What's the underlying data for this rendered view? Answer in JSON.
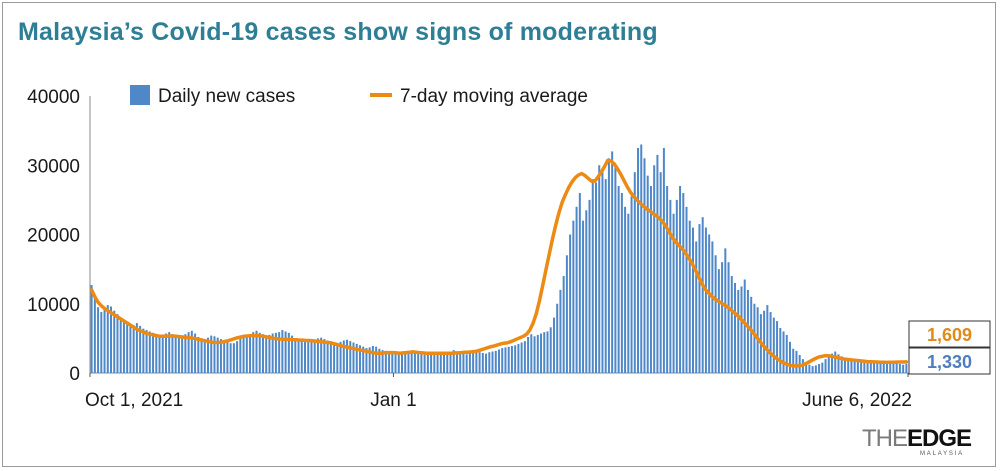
{
  "title": "Malaysia’s Covid-19 cases show signs of moderating",
  "logo": {
    "part1": "THE",
    "part2": "EDGE",
    "sub": "MALAYSIA"
  },
  "colors": {
    "bars": "#4e88c8",
    "line": "#ec8a13",
    "title": "#2e7f96",
    "callout_line": "#e08a1a",
    "callout_bar": "#4e7ec0"
  },
  "chart_data": {
    "type": "bar",
    "title": "Malaysia’s Covid-19 cases show signs of moderating",
    "xlabel": "",
    "ylabel": "",
    "ylim": [
      0,
      40000
    ],
    "yticks": [
      0,
      10000,
      20000,
      30000,
      40000
    ],
    "ytick_labels": [
      "0",
      "10000",
      "20000",
      "30000",
      "40000"
    ],
    "x_start": "2021-10-01",
    "x_end": "2022-06-06",
    "xtick_labels": [
      {
        "date": "2021-10-01",
        "label": "Oct 1, 2021"
      },
      {
        "date": "2022-01-01",
        "label": "Jan 1"
      },
      {
        "date": "2022-06-06",
        "label": "June 6, 2022"
      }
    ],
    "legend": {
      "placement": "top",
      "entries": [
        "Daily new cases",
        "7-day moving average"
      ]
    },
    "series": [
      {
        "name": "Daily new cases",
        "kind": "bar",
        "values": [
          12700,
          11000,
          9500,
          8800,
          9300,
          9800,
          9600,
          9000,
          8500,
          8000,
          7500,
          7400,
          7000,
          6900,
          7200,
          6800,
          6400,
          6200,
          6000,
          5800,
          5600,
          5400,
          5500,
          5700,
          5900,
          5600,
          5300,
          5100,
          5000,
          5600,
          5900,
          6100,
          5700,
          5200,
          5000,
          4800,
          5100,
          5400,
          5300,
          5100,
          4900,
          4600,
          4400,
          4300,
          4300,
          4600,
          5000,
          5200,
          5400,
          5600,
          5900,
          6100,
          5800,
          5600,
          5400,
          5500,
          5700,
          5800,
          5900,
          6200,
          6000,
          5800,
          5400,
          4900,
          4700,
          4600,
          4600,
          4500,
          4500,
          4700,
          5000,
          5100,
          4900,
          4700,
          4600,
          4300,
          4200,
          4500,
          4700,
          4800,
          4600,
          4400,
          4200,
          4000,
          3800,
          3600,
          3700,
          3900,
          3800,
          3500,
          3300,
          3200,
          3000,
          2900,
          2900,
          2800,
          2900,
          3000,
          3200,
          3000,
          2900,
          2800,
          2700,
          2900,
          3100,
          3000,
          2800,
          2700,
          2600,
          2700,
          2900,
          3100,
          3300,
          3100,
          2900,
          3000,
          2700,
          3100,
          3300,
          3200,
          3000,
          2900,
          2800,
          3000,
          3100,
          3200,
          3400,
          3600,
          3700,
          3800,
          3900,
          4000,
          4200,
          4400,
          4600,
          5200,
          5600,
          5300,
          5500,
          5700,
          5900,
          6000,
          6600,
          8000,
          10000,
          12000,
          14000,
          17000,
          20000,
          22000,
          24000,
          26000,
          22000,
          23500,
          25000,
          28000,
          27500,
          30000,
          29500,
          28000,
          31000,
          32000,
          30000,
          27000,
          26000,
          24000,
          23000,
          25500,
          29000,
          32500,
          33000,
          31000,
          28500,
          27000,
          30000,
          31500,
          29000,
          32500,
          27000,
          25000,
          23000,
          25000,
          27000,
          26000,
          24000,
          22000,
          21000,
          19000,
          21500,
          22500,
          21000,
          20000,
          19000,
          17000,
          15000,
          16000,
          18000,
          16000,
          14000,
          13000,
          12000,
          12500,
          13500,
          12000,
          11000,
          10000,
          9500,
          8500,
          9000,
          9800,
          8800,
          8000,
          7500,
          6500,
          6000,
          5500,
          4500,
          3500,
          3200,
          2600,
          2000,
          1500,
          1200,
          1000,
          1100,
          1300,
          1500,
          2000,
          2500,
          2800,
          3100,
          2700,
          2400,
          2200,
          2000,
          1900,
          1800,
          1700,
          1800,
          1900,
          1800,
          1700,
          1600,
          1500,
          1700,
          1600,
          1400,
          1300,
          1500,
          1400,
          1300,
          1200,
          1330
        ]
      },
      {
        "name": "7-day moving average",
        "kind": "line",
        "values": [
          12000,
          11000,
          10200,
          9700,
          9300,
          9000,
          8700,
          8400,
          8100,
          7800,
          7500,
          7200,
          6900,
          6600,
          6300,
          6100,
          5900,
          5700,
          5600,
          5500,
          5400,
          5300,
          5300,
          5300,
          5350,
          5350,
          5300,
          5250,
          5200,
          5150,
          5100,
          5050,
          4950,
          4850,
          4750,
          4650,
          4550,
          4450,
          4400,
          4400,
          4450,
          4550,
          4650,
          4800,
          4950,
          5100,
          5200,
          5300,
          5350,
          5400,
          5400,
          5400,
          5350,
          5300,
          5200,
          5100,
          5000,
          4950,
          4900,
          4850,
          4850,
          4850,
          4800,
          4800,
          4750,
          4750,
          4700,
          4700,
          4650,
          4600,
          4550,
          4500,
          4450,
          4400,
          4300,
          4200,
          4050,
          3900,
          3800,
          3700,
          3600,
          3500,
          3400,
          3300,
          3200,
          3100,
          3000,
          2900,
          2850,
          2850,
          2900,
          2950,
          2950,
          2950,
          2900,
          2850,
          2900,
          2950,
          3000,
          3050,
          3000,
          2950,
          2900,
          2850,
          2850,
          2850,
          2850,
          2850,
          2850,
          2850,
          2850,
          2850,
          2900,
          2900,
          2950,
          3000,
          3000,
          3050,
          3100,
          3200,
          3350,
          3500,
          3650,
          3800,
          3900,
          4050,
          4200,
          4300,
          4350,
          4500,
          4700,
          4900,
          5100,
          5300,
          5600,
          6200,
          7200,
          8600,
          10500,
          12700,
          15000,
          17200,
          19400,
          21400,
          23200,
          24700,
          25800,
          26800,
          27600,
          28200,
          28600,
          28800,
          28500,
          28100,
          27700,
          27700,
          28300,
          29000,
          29800,
          30700,
          30600,
          30200,
          29500,
          28700,
          27800,
          26900,
          26100,
          25500,
          25000,
          24500,
          24100,
          23700,
          23400,
          23000,
          22700,
          22300,
          21800,
          21100,
          20300,
          19500,
          18900,
          18400,
          17900,
          17300,
          16600,
          15800,
          14900,
          13900,
          12900,
          12100,
          11600,
          11100,
          10700,
          10400,
          10100,
          9800,
          9500,
          9100,
          8700,
          8300,
          7800,
          7300,
          6800,
          6300,
          5700,
          5100,
          4500,
          3900,
          3400,
          2900,
          2500,
          2100,
          1800,
          1500,
          1300,
          1150,
          1050,
          1000,
          1050,
          1150,
          1350,
          1600,
          1850,
          2100,
          2300,
          2400,
          2500,
          2500,
          2400,
          2300,
          2200,
          2100,
          2000,
          1950,
          1900,
          1850,
          1800,
          1750,
          1700,
          1650,
          1620,
          1600,
          1580,
          1560,
          1550,
          1540,
          1550,
          1560,
          1570,
          1580,
          1590,
          1609
        ]
      }
    ],
    "callouts": [
      {
        "series": "7-day moving average",
        "label": "1,609"
      },
      {
        "series": "Daily new cases",
        "label": "1,330"
      }
    ]
  }
}
